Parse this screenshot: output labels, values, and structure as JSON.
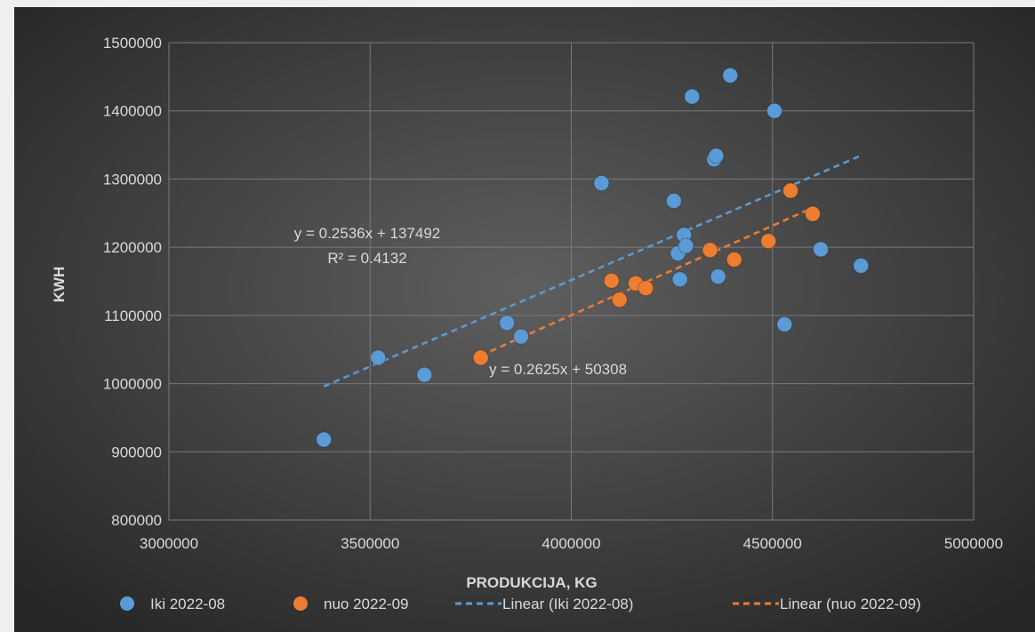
{
  "chart_data": {
    "type": "scatter",
    "title": "",
    "xlabel": "PRODUKCIJA, KG",
    "ylabel": "KWH",
    "xlim": [
      3000000,
      5000000
    ],
    "ylim": [
      800000,
      1500000
    ],
    "x_ticks": [
      "3000000",
      "3500000",
      "4000000",
      "4500000",
      "5000000"
    ],
    "y_ticks": [
      "800000",
      "900000",
      "1000000",
      "1100000",
      "1200000",
      "1300000",
      "1400000",
      "1500000"
    ],
    "grid": true,
    "legend_position": "bottom",
    "series": [
      {
        "name": "Iki 2022-08",
        "color": "#5b9bd5",
        "points": [
          [
            3385000,
            918000
          ],
          [
            3520000,
            1038000
          ],
          [
            3635000,
            1013000
          ],
          [
            3840000,
            1089000
          ],
          [
            3875000,
            1069000
          ],
          [
            4075000,
            1294000
          ],
          [
            4255000,
            1268000
          ],
          [
            4265000,
            1191000
          ],
          [
            4270000,
            1153000
          ],
          [
            4280000,
            1218000
          ],
          [
            4285000,
            1202000
          ],
          [
            4300000,
            1421000
          ],
          [
            4355000,
            1329000
          ],
          [
            4360000,
            1334000
          ],
          [
            4365000,
            1157000
          ],
          [
            4395000,
            1452000
          ],
          [
            4505000,
            1400000
          ],
          [
            4530000,
            1087000
          ],
          [
            4620000,
            1197000
          ],
          [
            4720000,
            1173000
          ]
        ]
      },
      {
        "name": "nuo 2022-09",
        "color": "#ed7d31",
        "points": [
          [
            3775000,
            1038000
          ],
          [
            4100000,
            1151000
          ],
          [
            4120000,
            1123000
          ],
          [
            4160000,
            1147000
          ],
          [
            4185000,
            1140000
          ],
          [
            4345000,
            1196000
          ],
          [
            4405000,
            1182000
          ],
          [
            4490000,
            1209000
          ],
          [
            4545000,
            1283000
          ],
          [
            4600000,
            1249000
          ]
        ]
      }
    ],
    "trendlines": [
      {
        "name": "Linear (Iki 2022-08)",
        "color": "#5b9bd5",
        "slope": 0.2536,
        "intercept": 137492,
        "x_range": [
          3385000,
          4720000
        ],
        "equation": "y = 0.2536x + 137492",
        "r_squared": "R² = 0.4132"
      },
      {
        "name": "Linear (nuo 2022-09)",
        "color": "#ed7d31",
        "slope": 0.2625,
        "intercept": 50308,
        "x_range": [
          3775000,
          4600000
        ],
        "equation": "y = 0.2625x + 50308"
      }
    ]
  }
}
